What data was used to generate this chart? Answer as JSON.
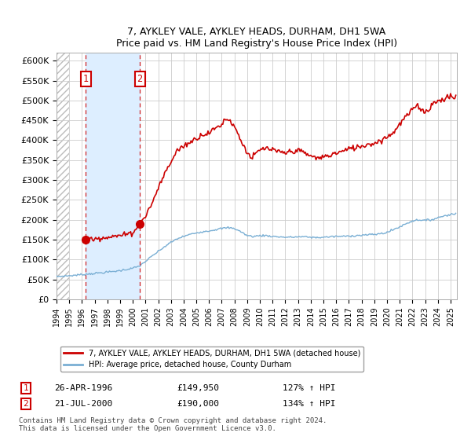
{
  "title": "7, AYKLEY VALE, AYKLEY HEADS, DURHAM, DH1 5WA",
  "subtitle": "Price paid vs. HM Land Registry's House Price Index (HPI)",
  "legend_label_red": "7, AYKLEY VALE, AYKLEY HEADS, DURHAM, DH1 5WA (detached house)",
  "legend_label_blue": "HPI: Average price, detached house, County Durham",
  "annotation1_label": "1",
  "annotation1_date": "26-APR-1996",
  "annotation1_price": "£149,950",
  "annotation1_hpi": "127% ↑ HPI",
  "annotation2_label": "2",
  "annotation2_date": "21-JUL-2000",
  "annotation2_price": "£190,000",
  "annotation2_hpi": "134% ↑ HPI",
  "footer": "Contains HM Land Registry data © Crown copyright and database right 2024.\nThis data is licensed under the Open Government Licence v3.0.",
  "purchase1_year": 1996.3,
  "purchase1_value": 149950,
  "purchase2_year": 2000.55,
  "purchase2_value": 190000,
  "xmin": 1994,
  "xmax": 2025.5,
  "ymin": 0,
  "ymax": 620000,
  "yticks": [
    0,
    50000,
    100000,
    150000,
    200000,
    250000,
    300000,
    350000,
    400000,
    450000,
    500000,
    550000,
    600000
  ],
  "ytick_labels": [
    "£0",
    "£50K",
    "£100K",
    "£150K",
    "£200K",
    "£250K",
    "£300K",
    "£350K",
    "£400K",
    "£450K",
    "£500K",
    "£550K",
    "£600K"
  ],
  "shade_color": "#ddeeff",
  "grid_color": "#cccccc",
  "red_line_color": "#cc0000",
  "blue_line_color": "#7aafd4",
  "box_color": "#cc0000",
  "hatch_xend": 1995.0,
  "red_keyframes": [
    [
      1996.3,
      149950
    ],
    [
      1997.0,
      152000
    ],
    [
      1997.5,
      155000
    ],
    [
      1998.0,
      157000
    ],
    [
      1998.5,
      158000
    ],
    [
      1999.0,
      160000
    ],
    [
      1999.5,
      163000
    ],
    [
      2000.0,
      168000
    ],
    [
      2000.55,
      190000
    ],
    [
      2001.0,
      210000
    ],
    [
      2001.5,
      240000
    ],
    [
      2002.0,
      280000
    ],
    [
      2002.5,
      315000
    ],
    [
      2003.0,
      345000
    ],
    [
      2003.5,
      375000
    ],
    [
      2004.0,
      385000
    ],
    [
      2004.5,
      395000
    ],
    [
      2005.0,
      405000
    ],
    [
      2005.5,
      415000
    ],
    [
      2006.0,
      418000
    ],
    [
      2006.5,
      430000
    ],
    [
      2007.0,
      440000
    ],
    [
      2007.3,
      455000
    ],
    [
      2007.5,
      452000
    ],
    [
      2007.8,
      445000
    ],
    [
      2008.0,
      435000
    ],
    [
      2008.5,
      400000
    ],
    [
      2009.0,
      370000
    ],
    [
      2009.3,
      355000
    ],
    [
      2009.5,
      360000
    ],
    [
      2010.0,
      375000
    ],
    [
      2010.5,
      380000
    ],
    [
      2011.0,
      375000
    ],
    [
      2011.5,
      370000
    ],
    [
      2012.0,
      368000
    ],
    [
      2012.5,
      372000
    ],
    [
      2013.0,
      375000
    ],
    [
      2013.5,
      368000
    ],
    [
      2014.0,
      360000
    ],
    [
      2014.5,
      355000
    ],
    [
      2015.0,
      358000
    ],
    [
      2015.5,
      362000
    ],
    [
      2016.0,
      368000
    ],
    [
      2016.5,
      372000
    ],
    [
      2017.0,
      378000
    ],
    [
      2017.5,
      382000
    ],
    [
      2018.0,
      385000
    ],
    [
      2018.5,
      390000
    ],
    [
      2019.0,
      392000
    ],
    [
      2019.5,
      400000
    ],
    [
      2020.0,
      408000
    ],
    [
      2020.5,
      420000
    ],
    [
      2021.0,
      440000
    ],
    [
      2021.5,
      460000
    ],
    [
      2022.0,
      475000
    ],
    [
      2022.3,
      490000
    ],
    [
      2022.5,
      485000
    ],
    [
      2023.0,
      470000
    ],
    [
      2023.3,
      478000
    ],
    [
      2023.5,
      490000
    ],
    [
      2024.0,
      498000
    ],
    [
      2024.5,
      505000
    ],
    [
      2025.0,
      510000
    ],
    [
      2025.3,
      508000
    ]
  ],
  "blue_keyframes": [
    [
      1994.0,
      57000
    ],
    [
      1995.0,
      59000
    ],
    [
      1996.0,
      62000
    ],
    [
      1997.0,
      65000
    ],
    [
      1998.0,
      68000
    ],
    [
      1999.0,
      72000
    ],
    [
      2000.0,
      78000
    ],
    [
      2000.5,
      83000
    ],
    [
      2001.0,
      95000
    ],
    [
      2001.5,
      108000
    ],
    [
      2002.0,
      120000
    ],
    [
      2002.5,
      132000
    ],
    [
      2003.0,
      143000
    ],
    [
      2003.5,
      152000
    ],
    [
      2004.0,
      158000
    ],
    [
      2004.5,
      163000
    ],
    [
      2005.0,
      167000
    ],
    [
      2005.5,
      170000
    ],
    [
      2006.0,
      172000
    ],
    [
      2006.5,
      175000
    ],
    [
      2007.0,
      178000
    ],
    [
      2007.5,
      180000
    ],
    [
      2008.0,
      178000
    ],
    [
      2008.5,
      170000
    ],
    [
      2009.0,
      160000
    ],
    [
      2009.5,
      158000
    ],
    [
      2010.0,
      160000
    ],
    [
      2010.5,
      160000
    ],
    [
      2011.0,
      158000
    ],
    [
      2011.5,
      157000
    ],
    [
      2012.0,
      156000
    ],
    [
      2012.5,
      156000
    ],
    [
      2013.0,
      157000
    ],
    [
      2013.5,
      157000
    ],
    [
      2014.0,
      156000
    ],
    [
      2014.5,
      155000
    ],
    [
      2015.0,
      156000
    ],
    [
      2015.5,
      157000
    ],
    [
      2016.0,
      158000
    ],
    [
      2016.5,
      158000
    ],
    [
      2017.0,
      159000
    ],
    [
      2017.5,
      160000
    ],
    [
      2018.0,
      161000
    ],
    [
      2018.5,
      162000
    ],
    [
      2019.0,
      163000
    ],
    [
      2019.5,
      165000
    ],
    [
      2020.0,
      168000
    ],
    [
      2020.5,
      175000
    ],
    [
      2021.0,
      182000
    ],
    [
      2021.5,
      190000
    ],
    [
      2022.0,
      197000
    ],
    [
      2022.5,
      200000
    ],
    [
      2023.0,
      198000
    ],
    [
      2023.5,
      200000
    ],
    [
      2024.0,
      205000
    ],
    [
      2024.5,
      210000
    ],
    [
      2025.0,
      213000
    ],
    [
      2025.3,
      215000
    ]
  ]
}
